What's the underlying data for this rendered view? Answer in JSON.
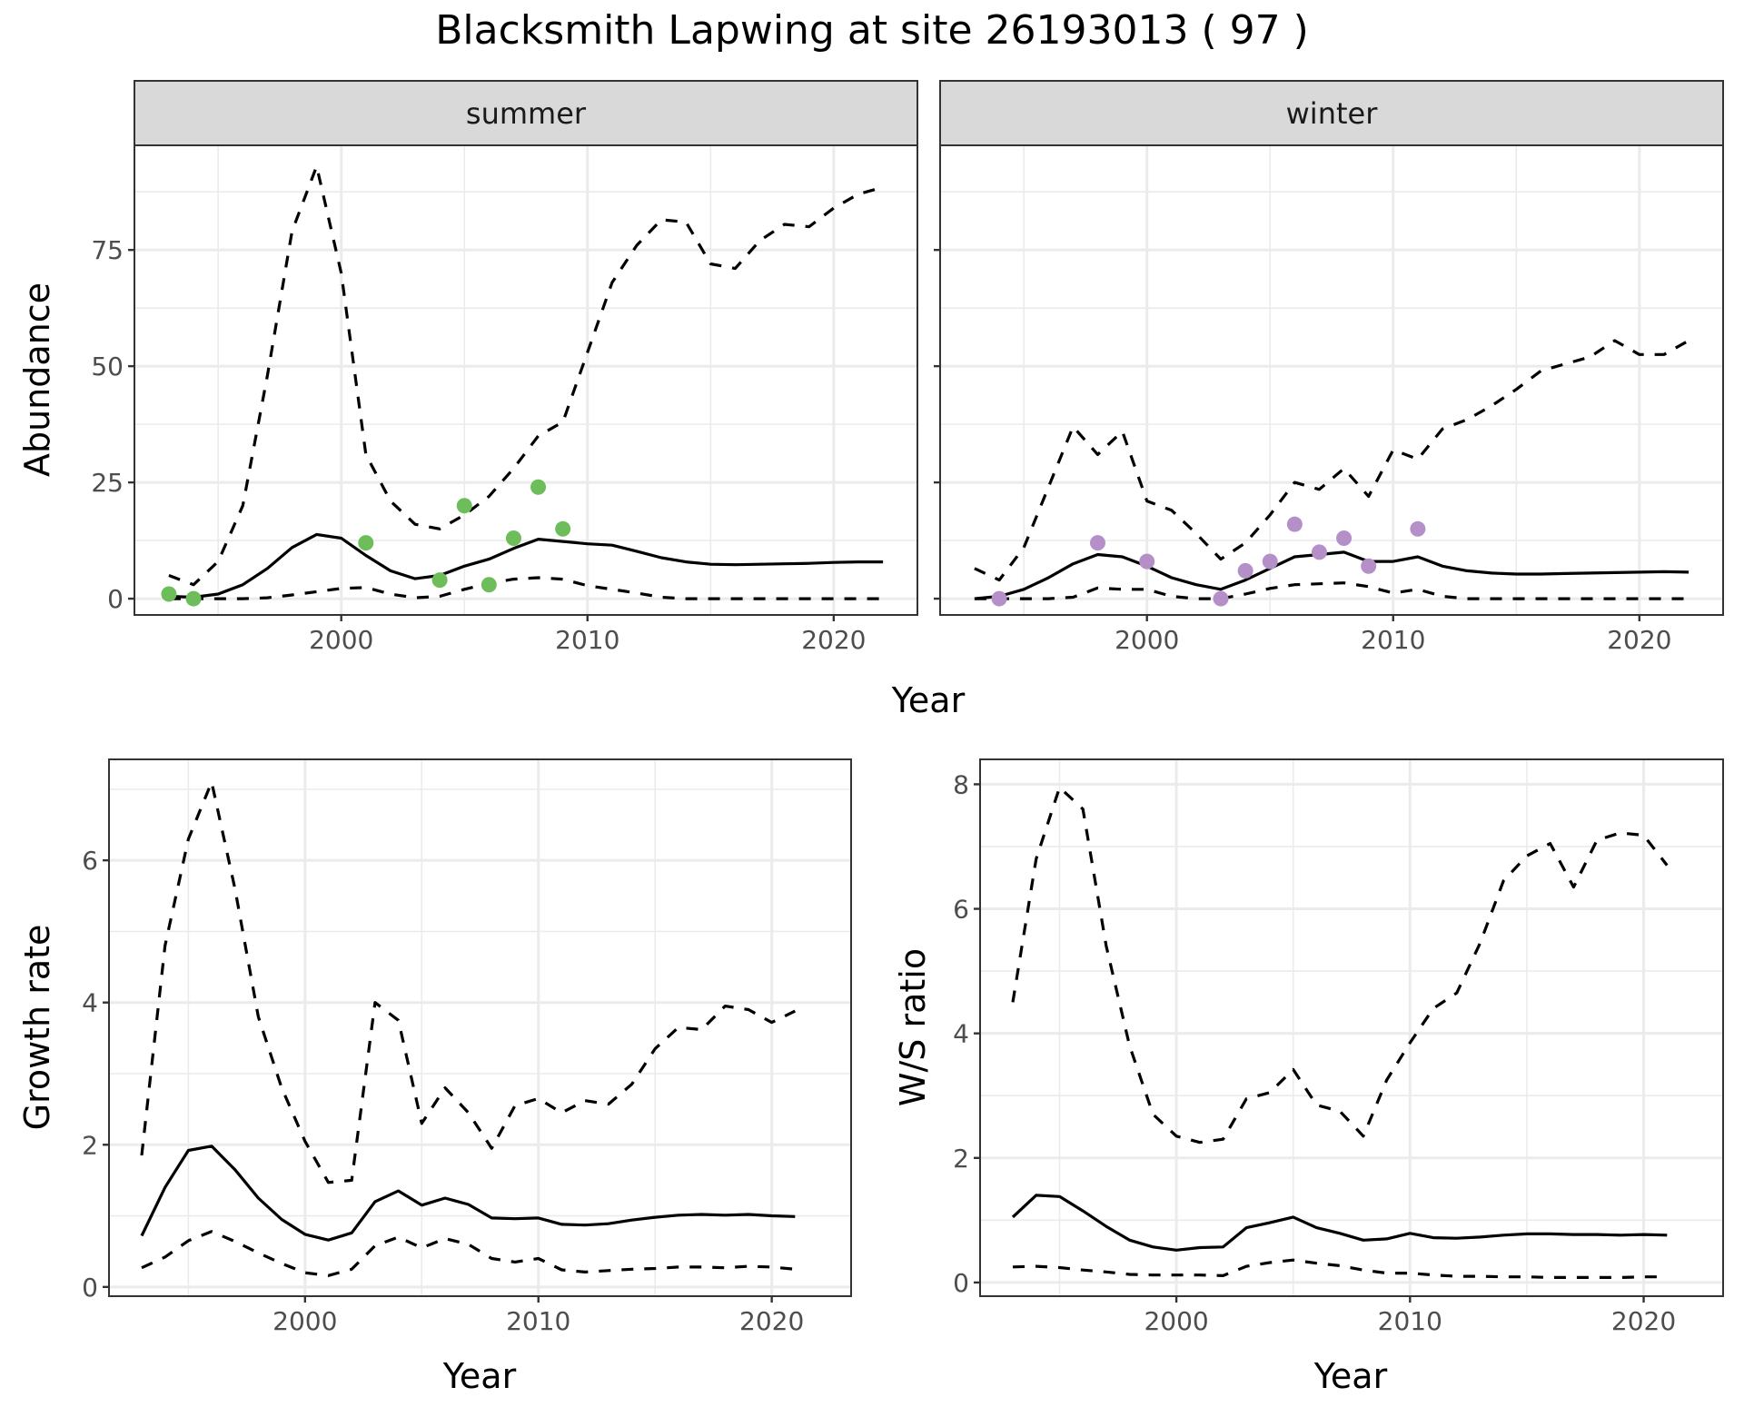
{
  "figure": {
    "title": "Blacksmith Lapwing at site 26193013 ( 97 )"
  },
  "colors": {
    "summer_points": "#6dbd5b",
    "winter_points": "#b48fc8",
    "strip_fill": "#d9d9d9",
    "grid": "#ebebeb",
    "border": "#333333",
    "line": "#000000"
  },
  "chart_data": [
    {
      "type": "line",
      "panel": "summer",
      "strip_label": "summer",
      "xlabel": "Year",
      "ylabel": "Abundance",
      "xlim": [
        1991.6,
        2023.4
      ],
      "ylim": [
        -3.5,
        97.5
      ],
      "xticks": [
        2000,
        2010,
        2020
      ],
      "xtick_labels": [
        "2000",
        "2010",
        "2020"
      ],
      "yticks": [
        0,
        25,
        50,
        75
      ],
      "ytick_labels": [
        "0",
        "25",
        "50",
        "75"
      ],
      "grid": true,
      "x": [
        1993,
        1994,
        1995,
        1996,
        1997,
        1998,
        1999,
        2000,
        2001,
        2002,
        2003,
        2004,
        2005,
        2006,
        2007,
        2008,
        2009,
        2010,
        2011,
        2012,
        2013,
        2014,
        2015,
        2016,
        2017,
        2018,
        2019,
        2020,
        2021,
        2022
      ],
      "series": [
        {
          "name": "upper",
          "style": "dashed",
          "values": [
            5,
            3,
            8,
            20,
            48,
            79,
            93,
            70,
            31,
            21,
            16,
            15,
            18,
            22,
            28,
            35,
            38,
            53,
            68,
            76,
            81.5,
            81,
            72,
            71,
            77,
            80.5,
            80,
            84,
            87,
            88.5
          ]
        },
        {
          "name": "estimate",
          "style": "solid",
          "values": [
            0.5,
            0.3,
            1,
            3,
            6.5,
            11,
            13.8,
            13,
            9.3,
            6,
            4.3,
            5,
            7,
            8.5,
            10.8,
            12.8,
            12.3,
            11.8,
            11.5,
            10.2,
            8.8,
            7.9,
            7.4,
            7.3,
            7.4,
            7.5,
            7.6,
            7.8,
            7.9,
            7.9
          ]
        },
        {
          "name": "lower",
          "style": "dashed",
          "values": [
            0,
            0,
            0,
            0,
            0.2,
            0.8,
            1.5,
            2.2,
            2.4,
            1,
            0.2,
            0.5,
            2,
            3.3,
            4.2,
            4.5,
            4.2,
            2.8,
            2,
            1.2,
            0.3,
            0,
            0,
            0,
            0,
            0,
            0,
            0,
            0,
            0
          ]
        }
      ],
      "points": {
        "name": "observed",
        "x": [
          1993,
          1994,
          2001,
          2004,
          2005,
          2006,
          2007,
          2008,
          2009
        ],
        "y": [
          1,
          0,
          12,
          4,
          20,
          3,
          13,
          24,
          15
        ]
      }
    },
    {
      "type": "line",
      "panel": "winter",
      "strip_label": "winter",
      "xlabel": "Year",
      "ylabel": "Abundance",
      "xlim": [
        1991.6,
        2023.4
      ],
      "ylim": [
        -3.5,
        97.5
      ],
      "xticks": [
        2000,
        2010,
        2020
      ],
      "xtick_labels": [
        "2000",
        "2010",
        "2020"
      ],
      "yticks": [
        0,
        25,
        50,
        75
      ],
      "grid": true,
      "x": [
        1993,
        1994,
        1995,
        1996,
        1997,
        1998,
        1999,
        2000,
        2001,
        2002,
        2003,
        2004,
        2005,
        2006,
        2007,
        2008,
        2009,
        2010,
        2011,
        2012,
        2013,
        2014,
        2015,
        2016,
        2017,
        2018,
        2019,
        2020,
        2021,
        2022
      ],
      "series": [
        {
          "name": "upper",
          "style": "dashed",
          "values": [
            6.5,
            4,
            11,
            24,
            37,
            31,
            36,
            21,
            19,
            14,
            8.5,
            12,
            18,
            25,
            23.5,
            28,
            22,
            32,
            30,
            36.5,
            38.5,
            41.5,
            45,
            49,
            50.5,
            52,
            55.5,
            52.5,
            52.5,
            55.5
          ]
        },
        {
          "name": "estimate",
          "style": "solid",
          "values": [
            0,
            0.5,
            2,
            4.5,
            7.5,
            9.5,
            9,
            7,
            4.5,
            3,
            2,
            4,
            6.5,
            9,
            9.5,
            10,
            8,
            8,
            9,
            7,
            6,
            5.5,
            5.3,
            5.3,
            5.4,
            5.5,
            5.6,
            5.7,
            5.8,
            5.7
          ]
        },
        {
          "name": "lower",
          "style": "dashed",
          "values": [
            0,
            0,
            0,
            0,
            0.3,
            2.3,
            2,
            2,
            0.5,
            0,
            0,
            1,
            2.2,
            3,
            3.2,
            3.4,
            2.6,
            1.2,
            2,
            0.5,
            0,
            0,
            0,
            0,
            0,
            0,
            0,
            0,
            0,
            0
          ]
        }
      ],
      "points": {
        "name": "observed",
        "x": [
          1994,
          1998,
          2000,
          2003,
          2004,
          2005,
          2006,
          2007,
          2008,
          2009,
          2011
        ],
        "y": [
          0,
          12,
          8,
          0,
          6,
          8,
          16,
          10,
          13,
          7,
          15
        ]
      }
    },
    {
      "type": "line",
      "panel": "growth",
      "xlabel": "Year",
      "ylabel": "Growth rate",
      "xlim": [
        1991.6,
        2023.4
      ],
      "ylim": [
        -0.13,
        7.42
      ],
      "xticks": [
        2000,
        2010,
        2020
      ],
      "xtick_labels": [
        "2000",
        "2010",
        "2020"
      ],
      "yticks": [
        0,
        2,
        4,
        6
      ],
      "ytick_labels": [
        "0",
        "2",
        "4",
        "6"
      ],
      "grid": true,
      "x": [
        1993,
        1994,
        1995,
        1996,
        1997,
        1998,
        1999,
        2000,
        2001,
        2002,
        2003,
        2004,
        2005,
        2006,
        2007,
        2008,
        2009,
        2010,
        2011,
        2012,
        2013,
        2014,
        2015,
        2016,
        2017,
        2018,
        2019,
        2020,
        2021
      ],
      "series": [
        {
          "name": "upper",
          "style": "dashed",
          "values": [
            1.85,
            4.8,
            6.3,
            7.1,
            5.6,
            3.8,
            2.8,
            2.05,
            1.47,
            1.5,
            4,
            3.75,
            2.3,
            2.8,
            2.45,
            1.95,
            2.55,
            2.65,
            2.45,
            2.62,
            2.57,
            2.85,
            3.35,
            3.65,
            3.62,
            3.95,
            3.9,
            3.72,
            3.88
          ]
        },
        {
          "name": "estimate",
          "style": "solid",
          "values": [
            0.72,
            1.4,
            1.92,
            1.98,
            1.65,
            1.25,
            0.95,
            0.74,
            0.66,
            0.76,
            1.2,
            1.35,
            1.15,
            1.25,
            1.16,
            0.97,
            0.96,
            0.97,
            0.88,
            0.87,
            0.89,
            0.94,
            0.98,
            1.01,
            1.02,
            1.01,
            1.02,
            1.0,
            0.99
          ]
        },
        {
          "name": "lower",
          "style": "dashed",
          "values": [
            0.27,
            0.42,
            0.65,
            0.78,
            0.64,
            0.48,
            0.33,
            0.2,
            0.16,
            0.25,
            0.58,
            0.7,
            0.55,
            0.68,
            0.6,
            0.4,
            0.35,
            0.4,
            0.24,
            0.21,
            0.23,
            0.25,
            0.26,
            0.28,
            0.28,
            0.27,
            0.29,
            0.28,
            0.25
          ]
        }
      ]
    },
    {
      "type": "line",
      "panel": "ws_ratio",
      "xlabel": "Year",
      "ylabel": "W/S ratio",
      "xlim": [
        1991.6,
        2023.4
      ],
      "ylim": [
        -0.22,
        8.4
      ],
      "xticks": [
        2000,
        2010,
        2020
      ],
      "xtick_labels": [
        "2000",
        "2010",
        "2020"
      ],
      "yticks": [
        0,
        2,
        4,
        6,
        8
      ],
      "ytick_labels": [
        "0",
        "2",
        "4",
        "6",
        "8"
      ],
      "grid": true,
      "x": [
        1993,
        1994,
        1995,
        1996,
        1997,
        1998,
        1999,
        2000,
        2001,
        2002,
        2003,
        2004,
        2005,
        2006,
        2007,
        2008,
        2009,
        2010,
        2011,
        2012,
        2013,
        2014,
        2015,
        2016,
        2017,
        2018,
        2019,
        2020,
        2021
      ],
      "series": [
        {
          "name": "upper",
          "style": "dashed",
          "values": [
            4.5,
            6.8,
            7.95,
            7.6,
            5.4,
            3.8,
            2.7,
            2.35,
            2.25,
            2.3,
            2.95,
            3.05,
            3.42,
            2.85,
            2.75,
            2.35,
            3.25,
            3.85,
            4.4,
            4.65,
            5.45,
            6.45,
            6.85,
            7.05,
            6.35,
            7.1,
            7.22,
            7.18,
            6.7
          ]
        },
        {
          "name": "estimate",
          "style": "solid",
          "values": [
            1.05,
            1.4,
            1.38,
            1.15,
            0.9,
            0.68,
            0.57,
            0.52,
            0.56,
            0.57,
            0.88,
            0.96,
            1.05,
            0.88,
            0.79,
            0.68,
            0.7,
            0.79,
            0.72,
            0.71,
            0.73,
            0.76,
            0.78,
            0.78,
            0.77,
            0.77,
            0.76,
            0.77,
            0.76
          ]
        },
        {
          "name": "lower",
          "style": "dashed",
          "values": [
            0.25,
            0.26,
            0.24,
            0.2,
            0.17,
            0.13,
            0.12,
            0.12,
            0.12,
            0.11,
            0.26,
            0.32,
            0.36,
            0.31,
            0.27,
            0.2,
            0.15,
            0.15,
            0.12,
            0.1,
            0.1,
            0.09,
            0.09,
            0.08,
            0.08,
            0.08,
            0.08,
            0.09,
            0.09
          ]
        }
      ]
    }
  ]
}
